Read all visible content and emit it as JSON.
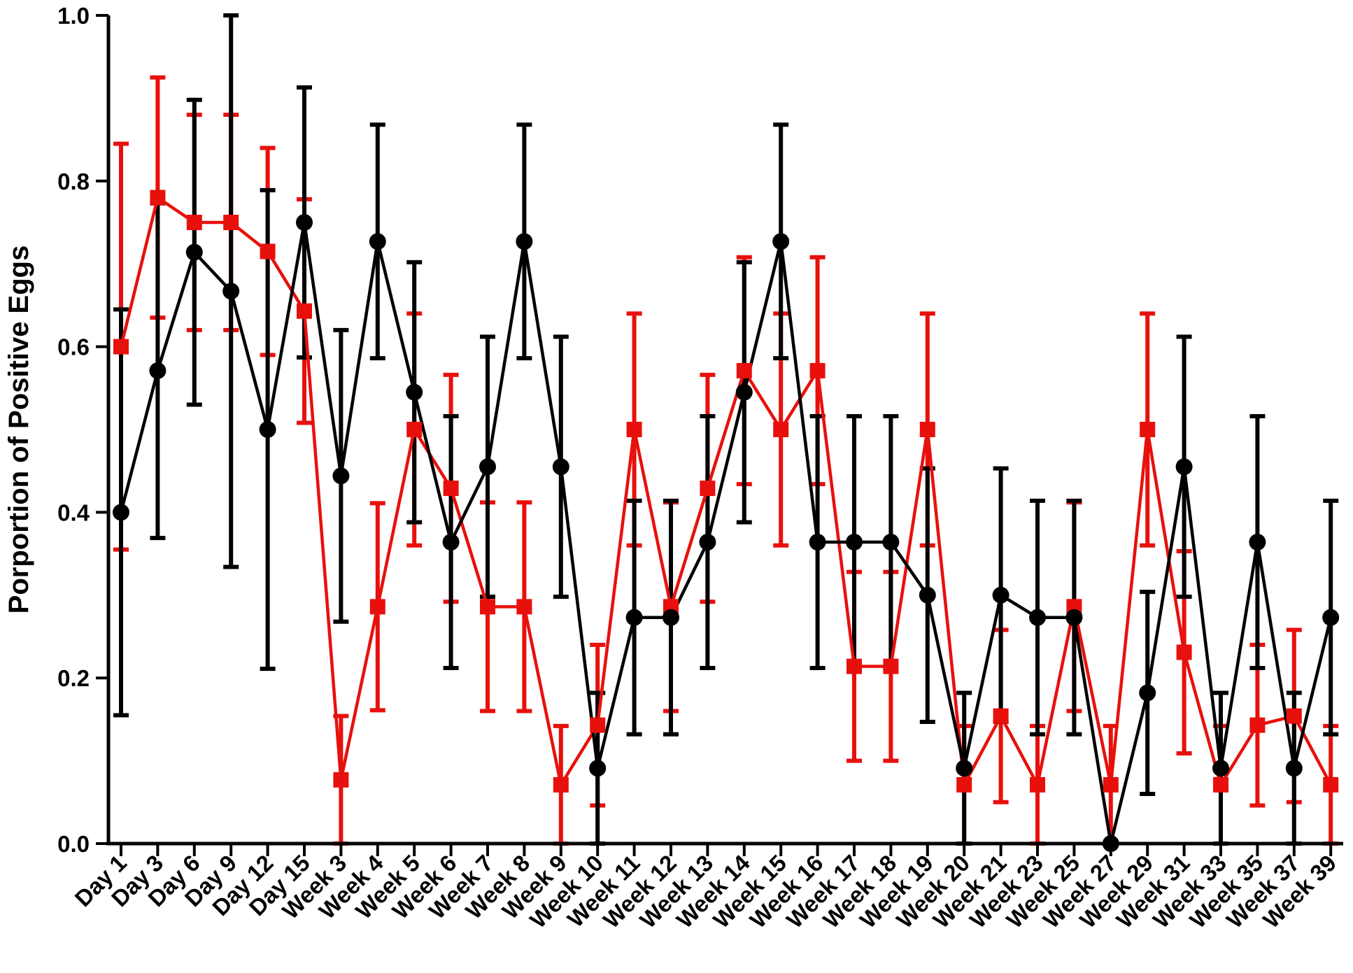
{
  "chart_data": {
    "type": "line",
    "title": "",
    "xlabel": "",
    "ylabel": "Porportion of Positive  Eggs",
    "ylim": [
      0,
      1
    ],
    "yticks": [
      "0.0",
      "0.2",
      "0.4",
      "0.6",
      "0.8",
      "1.0"
    ],
    "grid": false,
    "legend": "none",
    "categories": [
      "Day 1",
      "Day 3",
      "Day 6",
      "Day 9",
      "Day 12",
      "Day 15",
      "Week 3",
      "Week 4",
      "Week 5",
      "Week 6",
      "Week 7",
      "Week 8",
      "Week 9",
      "Week 10",
      "Week 11",
      "Week 12",
      "Week 13",
      "Week 14",
      "Week 15",
      "Week 16",
      "Week 17",
      "Week 18",
      "Week 19",
      "Week 20",
      "Week 21",
      "Week 23",
      "Week 25",
      "Week 27",
      "Week 29",
      "Week 31",
      "Week 33",
      "Week 35",
      "Week 37",
      "Week 39"
    ],
    "series": [
      {
        "color": "#e8100c",
        "marker": "square",
        "values": [
          0.6,
          0.78,
          0.75,
          0.75,
          0.715,
          0.643,
          0.077,
          0.286,
          0.5,
          0.429,
          0.286,
          0.286,
          0.071,
          0.143,
          0.5,
          0.286,
          0.429,
          0.571,
          0.5,
          0.571,
          0.214,
          0.214,
          0.5,
          0.071,
          0.154,
          0.071,
          0.286,
          0.071,
          0.5,
          0.231,
          0.071,
          0.143,
          0.154,
          0.071
        ],
        "err": [
          0.245,
          0.145,
          0.13,
          0.13,
          0.125,
          0.135,
          0.077,
          0.125,
          0.14,
          0.137,
          0.126,
          0.126,
          0.071,
          0.097,
          0.14,
          0.126,
          0.137,
          0.137,
          0.14,
          0.137,
          0.114,
          0.114,
          0.14,
          0.071,
          0.104,
          0.071,
          0.126,
          0.071,
          0.14,
          0.122,
          0.071,
          0.097,
          0.104,
          0.071
        ]
      },
      {
        "color": "#000000",
        "marker": "circle",
        "values": [
          0.4,
          0.571,
          0.714,
          0.667,
          0.5,
          0.75,
          0.444,
          0.727,
          0.545,
          0.364,
          0.455,
          0.727,
          0.455,
          0.091,
          0.273,
          0.273,
          0.364,
          0.545,
          0.727,
          0.364,
          0.364,
          0.364,
          0.3,
          0.091,
          0.3,
          0.273,
          0.273,
          0.0,
          0.182,
          0.455,
          0.091,
          0.364,
          0.091,
          0.273
        ],
        "err": [
          0.245,
          0.202,
          0.184,
          0.333,
          0.289,
          0.163,
          0.176,
          0.141,
          0.157,
          0.152,
          0.157,
          0.141,
          0.157,
          0.091,
          0.141,
          0.141,
          0.152,
          0.157,
          0.141,
          0.152,
          0.152,
          0.152,
          0.153,
          0.091,
          0.153,
          0.141,
          0.141,
          0.0,
          0.122,
          0.157,
          0.091,
          0.152,
          0.091,
          0.141
        ]
      }
    ]
  }
}
